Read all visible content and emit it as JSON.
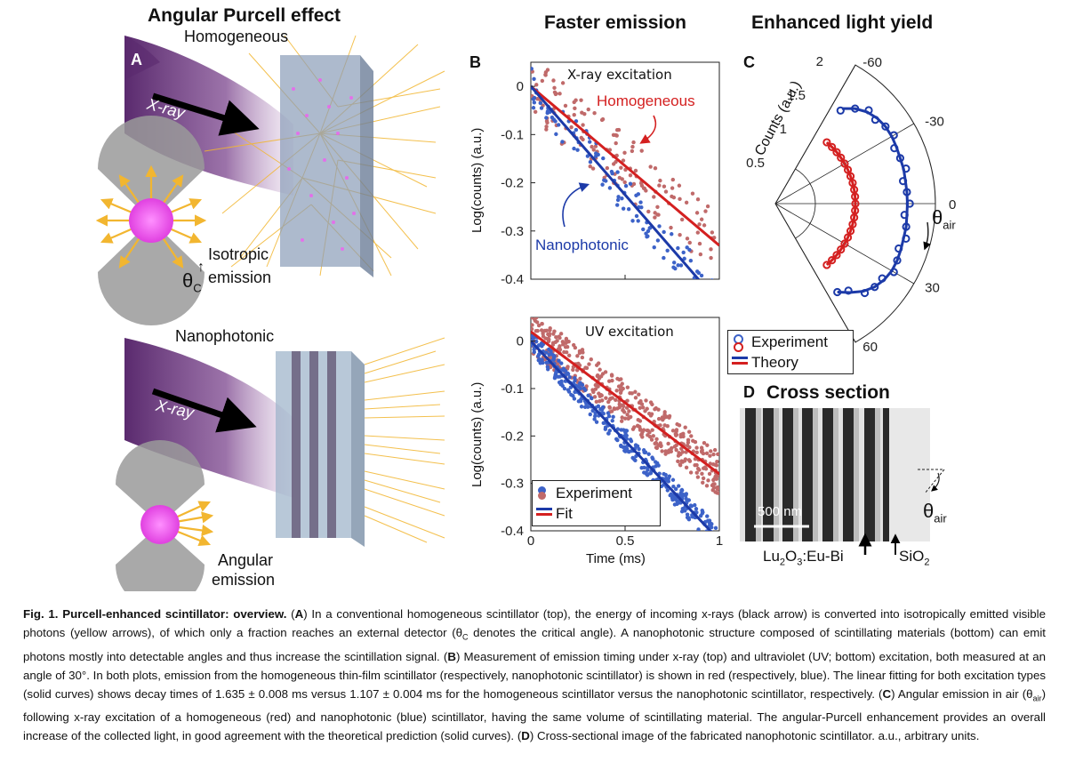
{
  "panels": {
    "A": {
      "letter": "A",
      "heading": "Angular Purcell effect",
      "top_label": "Homogeneous",
      "bottom_label": "Nanophotonic",
      "xray_label": "X-ray",
      "isotropic_label_1": "Isotropic",
      "isotropic_label_2": "emission",
      "theta_c": "θ",
      "theta_c_sub": "C",
      "angular_label_1": "Angular",
      "angular_label_2": "emission"
    },
    "B": {
      "letter": "B",
      "heading": "Faster emission",
      "top_title": "X-ray excitation",
      "bottom_title": "UV excitation",
      "homog_label": "Homogeneous",
      "nano_label": "Nanophotonic",
      "legend_experiment": "Experiment",
      "legend_fit": "Fit"
    },
    "C": {
      "letter": "C",
      "heading": "Enhanced light yield",
      "radial_label": "Counts (a.u.)",
      "theta_label": "θ",
      "theta_sub": "air",
      "legend_experiment": "Experiment",
      "legend_theory": "Theory"
    },
    "D": {
      "letter": "D",
      "title": "Cross section",
      "scalebar": "500 nm",
      "material_1": "Lu",
      "material_1_sub": "2",
      "material_1_rest": "O",
      "material_1_sub2": "3",
      "material_1_tail": ":Eu-Bi",
      "material_2": "SiO",
      "material_2_sub": "2",
      "theta_label": "θ",
      "theta_sub": "air"
    }
  },
  "colors": {
    "red": "#d42020",
    "blue": "#1c3aa8",
    "red_points": "#c06a6a",
    "blue_points": "#3c62c8",
    "yellow": "#f2b630",
    "purple": "#4a2060",
    "pink": "#f060f0"
  },
  "chart_data": [
    {
      "type": "scatter",
      "title": "X-ray excitation",
      "xlabel": "",
      "ylabel": "Log(counts) (a.u.)",
      "xlim": [
        0,
        1
      ],
      "ylim": [
        -0.4,
        0.05
      ],
      "yticks": [
        0,
        -0.1,
        -0.2,
        -0.3,
        -0.4
      ],
      "series": [
        {
          "name": "Homogeneous",
          "fit": {
            "x": [
              0,
              1
            ],
            "y": [
              0.0,
              -0.33
            ]
          }
        },
        {
          "name": "Nanophotonic",
          "fit": {
            "x": [
              0,
              1
            ],
            "y": [
              0.0,
              -0.45
            ]
          }
        }
      ]
    },
    {
      "type": "scatter",
      "title": "UV excitation",
      "xlabel": "Time (ms)",
      "ylabel": "Log(counts) (a.u.)",
      "xlim": [
        0,
        1
      ],
      "ylim": [
        -0.4,
        0.05
      ],
      "xticks": [
        0,
        0.5,
        1
      ],
      "xtick_labels": [
        "0",
        "0.5",
        "1"
      ],
      "yticks": [
        0,
        -0.1,
        -0.2,
        -0.3,
        -0.4
      ],
      "legend": [
        "Experiment",
        "Fit"
      ],
      "series": [
        {
          "fit": {
            "x": [
              0,
              1
            ],
            "y": [
              0.02,
              -0.28
            ]
          }
        },
        {
          "fit": {
            "x": [
              0,
              1
            ],
            "y": [
              0.0,
              -0.42
            ]
          }
        }
      ]
    },
    {
      "type": "polar",
      "title": "",
      "radial_label": "Counts (a.u.)",
      "radial_ticks": [
        "0.5",
        "1",
        "1.5",
        "2"
      ],
      "angle_ticks": [
        "-60",
        "-30",
        "0",
        "30",
        "60"
      ],
      "legend": [
        "Experiment",
        "Theory"
      ],
      "series": [
        {
          "angles": [
            -50,
            -45,
            -40,
            -35,
            -30,
            -25,
            -20,
            -15,
            -10,
            -5,
            0,
            5,
            10,
            15,
            20,
            25,
            30,
            35,
            40,
            45,
            50
          ],
          "values": [
            1.0,
            1.0,
            1.0,
            1.0,
            1.0,
            1.0,
            1.0,
            1.0,
            1.0,
            1.0,
            1.0,
            1.0,
            1.0,
            1.0,
            1.0,
            1.0,
            1.0,
            1.0,
            1.0,
            1.0,
            1.0
          ]
        },
        {
          "angles": [
            -55,
            -50,
            -45,
            -40,
            -35,
            -30,
            -25,
            -20,
            -15,
            -10,
            -5,
            0,
            5,
            10,
            15,
            20,
            25,
            30,
            35,
            40,
            45,
            50,
            55
          ],
          "values": [
            1.45,
            1.55,
            1.62,
            1.66,
            1.68,
            1.68,
            1.67,
            1.66,
            1.66,
            1.65,
            1.65,
            1.65,
            1.65,
            1.66,
            1.66,
            1.67,
            1.68,
            1.68,
            1.66,
            1.62,
            1.55,
            1.45,
            1.35
          ]
        }
      ]
    }
  ],
  "caption": {
    "fig_label": "Fig. 1. Purcell-enhanced scintillator: overview.",
    "text_1": " (",
    "A": "A",
    "text_2": ") In a conventional homogeneous scintillator (top), the energy of incoming x-rays (black arrow) is converted into isotropically emitted visible photons (yellow arrows), of which only a fraction reaches an external detector (θ",
    "sub_c": "C",
    "text_3": " denotes the critical angle). A nanophotonic structure composed of scintillating materials (bottom) can emit photons mostly into detectable angles and thus increase the scintillation signal. (",
    "B": "B",
    "text_4": ") Measurement of emission timing under x-ray (top) and ultraviolet (UV; bottom) excitation, both measured at an angle of 30°. In both plots, emission from the homogeneous thin-film scintillator (respectively, nanophotonic scintillator) is shown in red (respectively, blue). The linear fitting for both excitation types (solid curves) shows decay times of 1.635 ± 0.008 ms versus 1.107 ± 0.004 ms for the homogeneous scintillator versus the nanophotonic scintillator, respectively. (",
    "C": "C",
    "text_5": ") Angular emission in air (θ",
    "sub_air": "air",
    "text_6": ") following x-ray excitation of a homogeneous (red) and nanophotonic (blue) scintillator, having the same volume of scintillating material. The angular-Purcell enhancement provides an overall increase of the collected light, in good agreement with the theoretical prediction (solid curves). (",
    "D": "D",
    "text_7": ") Cross-sectional image of the fabricated nanophotonic scintillator. a.u., arbitrary units."
  }
}
